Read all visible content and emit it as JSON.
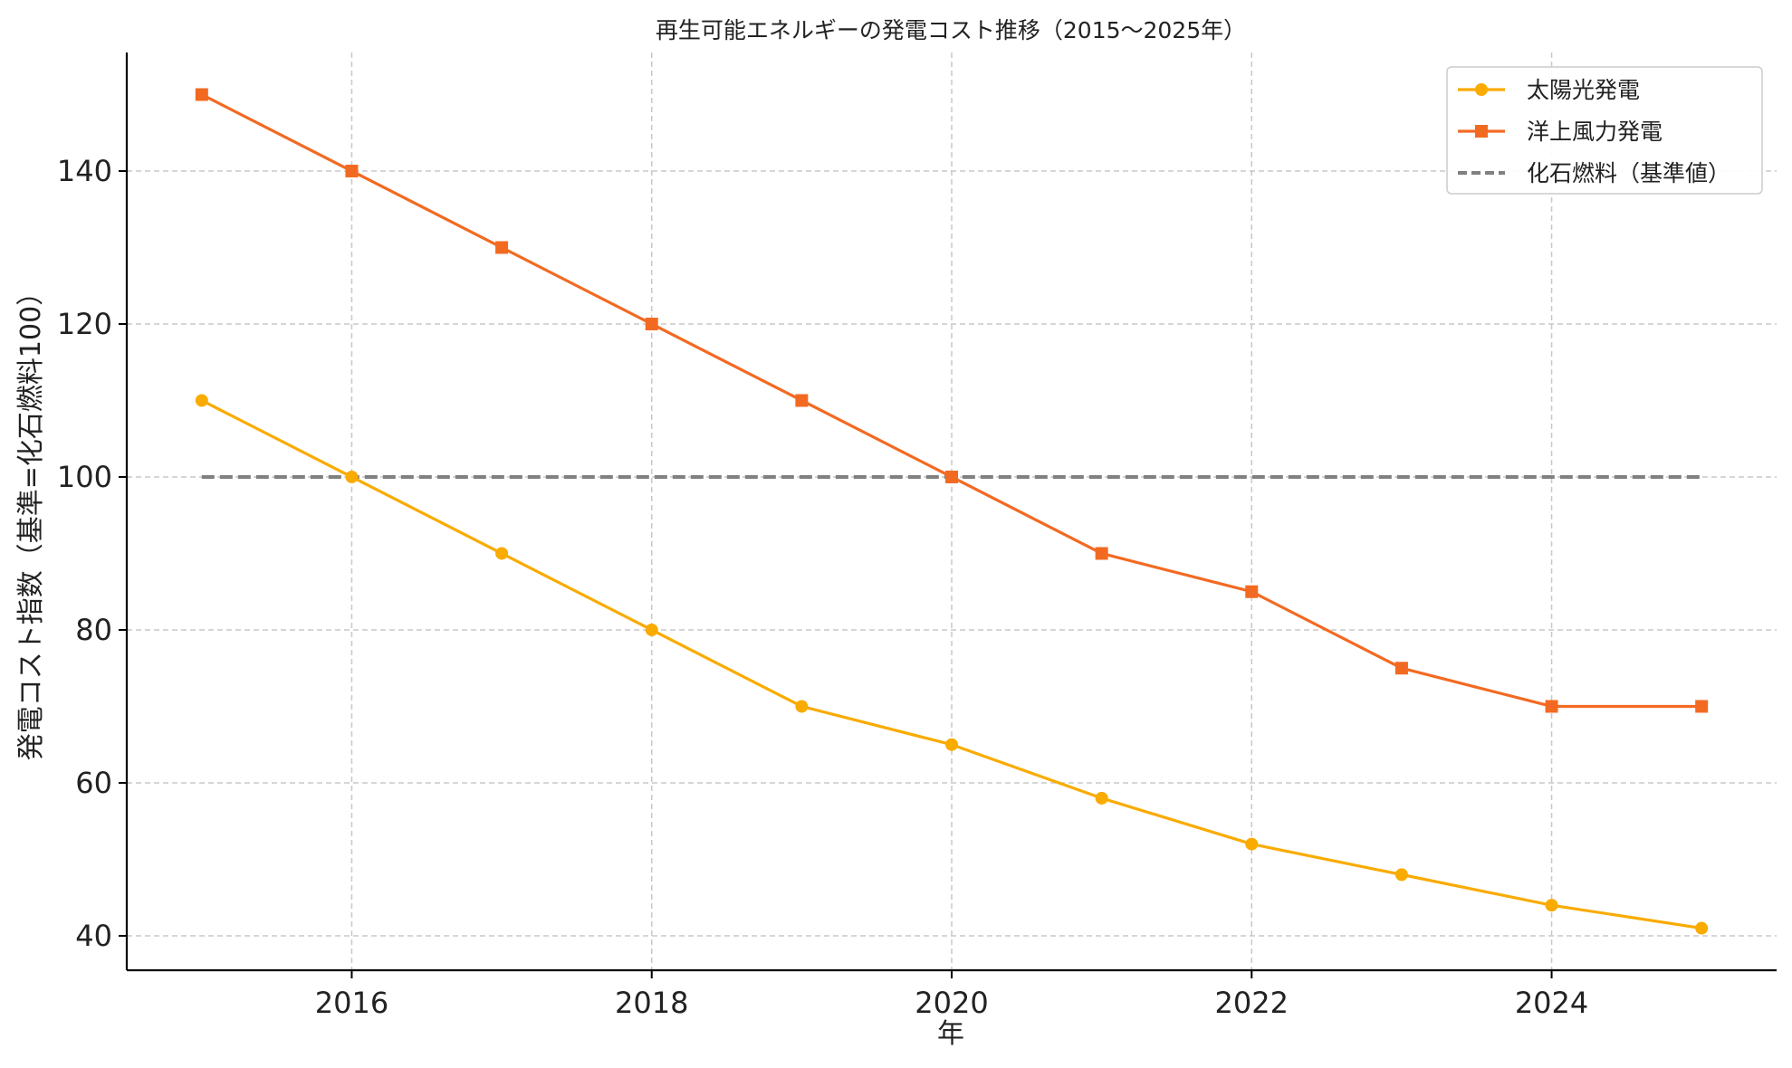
{
  "chart_data": {
    "type": "line",
    "title": "再生可能エネルギーの発電コスト推移（2015〜2025年）",
    "xlabel": "年",
    "ylabel": "発電コスト指数（基準=化石燃料100）",
    "x": [
      2015,
      2016,
      2017,
      2018,
      2019,
      2020,
      2021,
      2022,
      2023,
      2024,
      2025
    ],
    "xlim": [
      2014.5,
      2025.5
    ],
    "ylim": [
      35.5,
      155.5
    ],
    "xticks": [
      2016,
      2018,
      2020,
      2022,
      2024
    ],
    "yticks": [
      40,
      60,
      80,
      100,
      120,
      140
    ],
    "xtick_labels": [
      "2016",
      "2018",
      "2020",
      "2022",
      "2024"
    ],
    "ytick_labels": [
      "40",
      "60",
      "80",
      "100",
      "120",
      "140"
    ],
    "grid": true,
    "legend_position": "top-right",
    "series": [
      {
        "name": "太陽光発電",
        "values": [
          110,
          100,
          90,
          80,
          70,
          65,
          58,
          52,
          48,
          44,
          41
        ],
        "color": "#F9AB00",
        "marker": "circle",
        "linestyle": "solid"
      },
      {
        "name": "洋上風力発電",
        "values": [
          150,
          140,
          130,
          120,
          110,
          100,
          90,
          85,
          75,
          70,
          70
        ],
        "color": "#F26A22",
        "marker": "square",
        "linestyle": "solid"
      },
      {
        "name": "化石燃料（基準値）",
        "values": [
          100,
          100,
          100,
          100,
          100,
          100,
          100,
          100,
          100,
          100,
          100
        ],
        "color": "#808080",
        "marker": "none",
        "linestyle": "dashed"
      }
    ]
  }
}
